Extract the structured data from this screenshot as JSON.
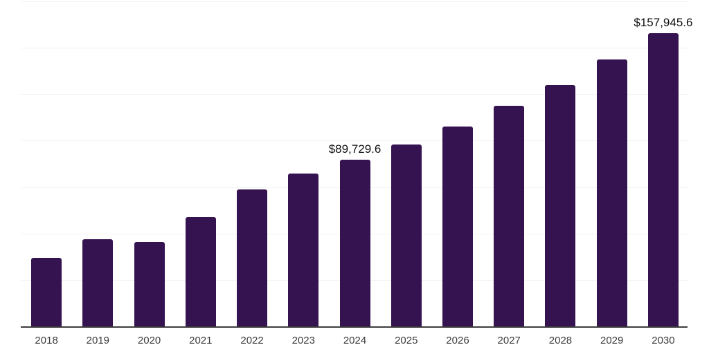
{
  "chart_data": {
    "type": "bar",
    "title": "",
    "xlabel": "",
    "ylabel": "",
    "categories": [
      "2018",
      "2019",
      "2020",
      "2021",
      "2022",
      "2023",
      "2024",
      "2025",
      "2026",
      "2027",
      "2028",
      "2029",
      "2030"
    ],
    "values": [
      37000,
      46900,
      45250,
      58700,
      73650,
      82250,
      89729.6,
      97950,
      107700,
      118900,
      130100,
      143600,
      157945.6
    ],
    "labeled_points": [
      {
        "category": "2024",
        "label": "$89,729.6"
      },
      {
        "category": "2030",
        "label": "$157,945.6"
      }
    ],
    "ylim": [
      0,
      175000
    ],
    "gridline_step": 25000,
    "grid": "horizontal",
    "legend": "none",
    "colors": {
      "bar": "#351351",
      "gridline": "#f2f2f2",
      "axis_line": "#3d3d3d",
      "value_label_text": "#111111",
      "tick_label_text": "#3c3c3c",
      "background": "#ffffff"
    }
  }
}
